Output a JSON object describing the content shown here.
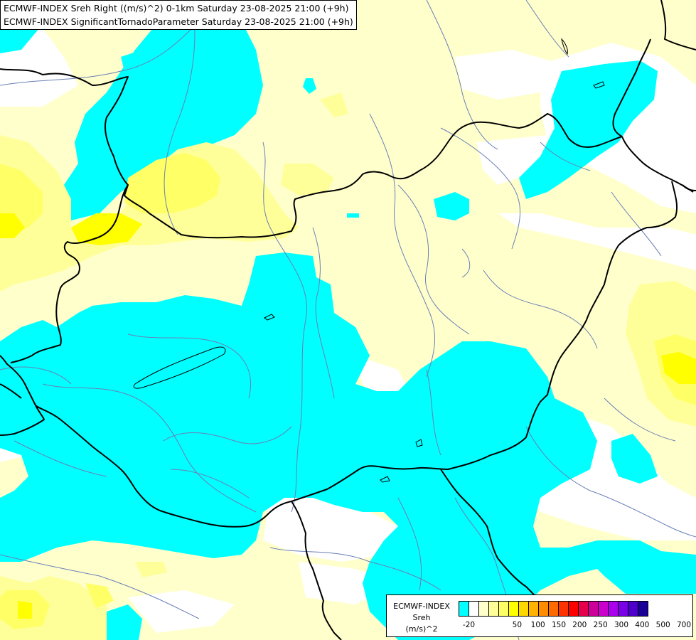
{
  "title": {
    "line1": "ECMWF-INDEX Sreh Right ((m/s)^2) 0-1km Saturday 23-08-2025 21:00 (+9h)",
    "line2": "ECMWF-INDEX SignificantTornadoParameter Saturday 23-08-2025 21:00 (+9h)"
  },
  "legend": {
    "source": "ECMWF-INDEX",
    "variable": "Sreh",
    "unit": "(m/s)^2",
    "colors": [
      "#00ffff",
      "#ffffff",
      "#ffffcc",
      "#ffff99",
      "#ffff66",
      "#ffff00",
      "#ffd700",
      "#ffb300",
      "#ff8c00",
      "#ff6a00",
      "#ff3300",
      "#ff0000",
      "#e6004c",
      "#cc0099",
      "#cc00cc",
      "#aa00ee",
      "#7a00e6",
      "#4d00cc",
      "#1a0099"
    ],
    "ticks": [
      "-20",
      "50",
      "100",
      "150",
      "200",
      "250",
      "300",
      "400",
      "500",
      "700"
    ]
  },
  "map_colors": {
    "negative": "#00ffff",
    "zero": "#ffffff",
    "low": "#ffffcc",
    "mid": "#ffff99",
    "high": "#ffff66",
    "peak": "#ffff00",
    "rivers": "#6a7fb5",
    "borders": "#000000"
  }
}
